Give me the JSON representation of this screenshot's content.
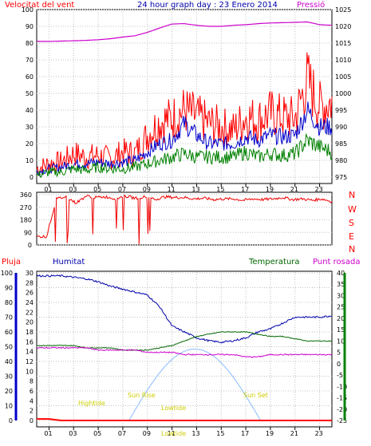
{
  "title": "24 hour graph day : 23 Enero 2014",
  "labels": {
    "wind": "Velocitat del vent",
    "pressure": "Pressió",
    "rain": "Pluja",
    "humidity": "Humitat",
    "temperature": "Temperatura",
    "dewpoint": "Punt rosada",
    "dirs": [
      "N",
      "W",
      "S",
      "E",
      "N"
    ],
    "hightide": "Hightide",
    "lowtide1": "Lowtide",
    "lowtide2": "Lowtide",
    "sunrise": "Sun Rise",
    "sunset": "Sun Set"
  },
  "colors": {
    "wind": "#ff0000",
    "avgwind": "#0000cc",
    "lull": "#008000",
    "pressure": "#cc00cc",
    "dir": "#ee0000",
    "humidity": "#0000aa",
    "temperature": "#006600",
    "dewpoint": "#cc00cc",
    "rain": "#ff0000",
    "sun": "#88bbff",
    "tide": "#dddd00"
  },
  "chart_data": [
    {
      "type": "line",
      "title": "24 hour graph day : 23 Enero 2014",
      "ylabel": "Velocitat del vent",
      "ylabel_right": "Pressió",
      "x_ticks": [
        "01",
        "03",
        "05",
        "07",
        "09",
        "11",
        "13",
        "15",
        "17",
        "19",
        "21",
        "23"
      ],
      "ylim": [
        0,
        100
      ],
      "y_ticks": [
        0,
        10,
        20,
        30,
        40,
        50,
        60,
        70,
        80,
        90,
        100
      ],
      "ylim_right": [
        975,
        1025
      ],
      "y_ticks_right": [
        975,
        980,
        985,
        990,
        995,
        1000,
        1005,
        1010,
        1015,
        1020,
        1025
      ],
      "x_hours": [
        0,
        1,
        2,
        3,
        4,
        5,
        6,
        7,
        8,
        9,
        10,
        11,
        12,
        13,
        14,
        15,
        16,
        17,
        18,
        19,
        20,
        21,
        22,
        23,
        24
      ],
      "series": [
        {
          "name": "Velocitat del vent",
          "axis": "left",
          "values": [
            5,
            8,
            9,
            14,
            12,
            13,
            11,
            15,
            14,
            25,
            33,
            35,
            40,
            36,
            32,
            30,
            28,
            36,
            34,
            38,
            36,
            35,
            58,
            42,
            45
          ]
        },
        {
          "name": "mitja",
          "axis": "left",
          "values": [
            3,
            5,
            6,
            8,
            8,
            9,
            8,
            9,
            10,
            15,
            20,
            22,
            32,
            25,
            20,
            20,
            20,
            24,
            22,
            25,
            24,
            25,
            40,
            30,
            30
          ]
        },
        {
          "name": "minim",
          "axis": "left",
          "values": [
            1,
            3,
            3,
            5,
            4,
            6,
            5,
            5,
            6,
            8,
            10,
            12,
            14,
            12,
            12,
            12,
            12,
            15,
            12,
            14,
            13,
            14,
            22,
            18,
            15
          ]
        },
        {
          "name": "Pressió",
          "axis": "right",
          "values": [
            1015.5,
            1015.5,
            1015.6,
            1015.7,
            1015.8,
            1016,
            1016.3,
            1016.8,
            1017.2,
            1018.2,
            1019.5,
            1020.7,
            1020.8,
            1020.3,
            1020.0,
            1020.0,
            1020.3,
            1020.5,
            1020.8,
            1021.0,
            1021.1,
            1021.2,
            1021.3,
            1020.5,
            1020.3
          ]
        }
      ]
    },
    {
      "type": "line",
      "ylabel_right": "N W S E N",
      "ylim": [
        0,
        360
      ],
      "y_ticks": [
        0,
        90,
        180,
        270,
        360
      ],
      "x_hours": [
        0,
        0.8,
        1.6,
        2.4,
        3.2,
        4,
        4.8,
        5.6,
        6.4,
        7.2,
        8,
        8.8,
        9.6,
        10.4,
        11.2,
        12,
        12.8,
        13.6,
        14.4,
        15.2,
        16,
        16.8,
        17.6,
        18.4,
        19.2,
        20,
        20.8,
        21.6,
        22.4,
        23.2,
        24
      ],
      "series": [
        {
          "name": "direccio",
          "values": [
            60,
            60,
            330,
            345,
            300,
            350,
            340,
            345,
            330,
            350,
            335,
            345,
            325,
            345,
            340,
            340,
            330,
            335,
            325,
            330,
            330,
            320,
            330,
            325,
            330,
            340,
            325,
            330,
            320,
            330,
            310
          ]
        }
      ]
    },
    {
      "type": "line",
      "ylabel": "Pluja",
      "ylabel2": "Humitat",
      "ylabel_right": "Temperatura",
      "ylabel_right2": "Punt rosada",
      "x_ticks": [
        "01",
        "03",
        "05",
        "07",
        "09",
        "11",
        "13",
        "15",
        "17",
        "19",
        "21",
        "23"
      ],
      "ylim": [
        0,
        100
      ],
      "y_ticks": [
        0,
        10,
        20,
        30,
        40,
        50,
        60,
        70,
        80,
        90,
        100
      ],
      "ylim_mid": [
        0,
        30
      ],
      "y_ticks_mid": [
        0,
        2,
        4,
        6,
        8,
        10,
        12,
        14,
        16,
        18,
        20,
        22,
        24,
        26,
        28,
        30
      ],
      "ylim_right": [
        -25,
        40
      ],
      "y_ticks_right": [
        -25,
        -20,
        -15,
        -10,
        -5,
        0,
        5,
        10,
        15,
        20,
        25,
        30,
        35,
        40
      ],
      "x_hours": [
        0,
        1,
        2,
        3,
        4,
        5,
        6,
        7,
        8,
        9,
        10,
        11,
        12,
        13,
        14,
        15,
        16,
        17,
        18,
        19,
        20,
        21,
        22,
        23,
        24
      ],
      "series": [
        {
          "name": "Humitat",
          "axis": "left",
          "values": [
            98,
            98,
            98,
            97,
            96,
            94,
            91,
            89,
            87,
            85,
            77,
            64,
            60,
            56,
            54,
            53,
            54,
            56,
            60,
            62,
            66,
            70,
            70,
            70,
            71
          ]
        },
        {
          "name": "Temperatura",
          "axis": "right",
          "values": [
            8,
            8,
            8,
            8,
            7,
            7,
            7,
            6,
            6,
            6,
            7,
            8,
            10,
            12,
            13,
            14,
            14,
            14,
            13,
            12,
            12,
            11,
            10,
            10,
            10
          ]
        },
        {
          "name": "Punt rosada",
          "axis": "right",
          "values": [
            7,
            7,
            7,
            7,
            7,
            6,
            6,
            6,
            6,
            5,
            5,
            5,
            4,
            4,
            4,
            4,
            4,
            3,
            3,
            4,
            4,
            4,
            4,
            4,
            4
          ]
        },
        {
          "name": "Pluja",
          "axis": "left",
          "values": [
            1,
            1,
            0,
            0,
            0,
            0,
            0,
            0,
            0,
            0,
            0,
            0,
            0,
            0,
            0,
            0,
            0,
            0,
            0,
            0,
            0,
            0,
            0,
            0,
            0
          ]
        }
      ]
    }
  ]
}
